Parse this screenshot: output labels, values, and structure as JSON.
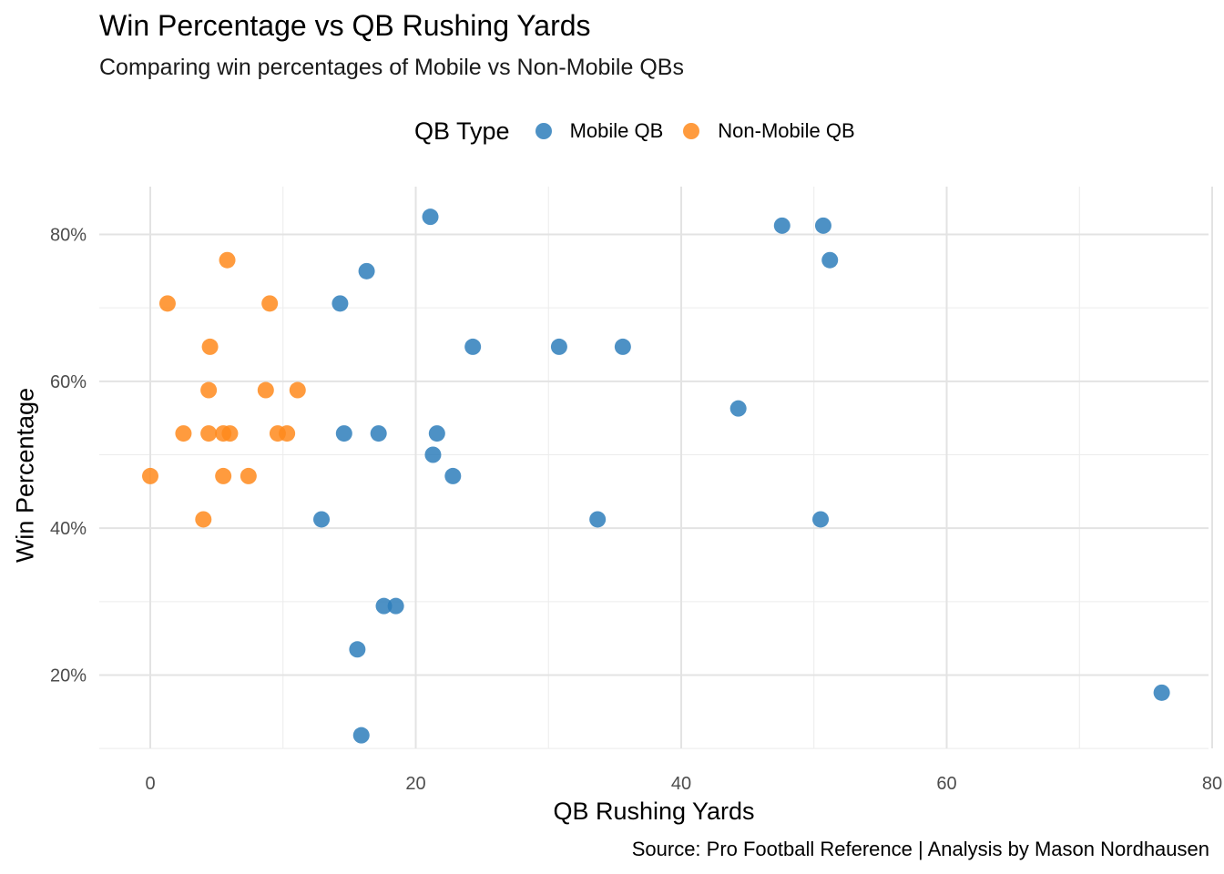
{
  "chart_data": {
    "type": "scatter",
    "title": "Win Percentage vs QB Rushing Yards",
    "subtitle": "Comparing win percentages of Mobile vs Non-Mobile QBs",
    "xlabel": "QB Rushing Yards",
    "ylabel": "Win Percentage",
    "caption": "Source: Pro Football Reference | Analysis by Mason Nordhausen",
    "xlim": [
      -4,
      80
    ],
    "ylim": [
      0.1,
      0.85
    ],
    "x_ticks": [
      0,
      20,
      40,
      60,
      80
    ],
    "x_tick_labels": [
      "0",
      "20",
      "40",
      "60",
      "80"
    ],
    "y_ticks": [
      0.2,
      0.4,
      0.6,
      0.8
    ],
    "y_tick_labels": [
      "20%",
      "40%",
      "60%",
      "80%"
    ],
    "grid": true,
    "legend_position": "top",
    "legend_title": "QB Type",
    "series": [
      {
        "name": "Mobile QB",
        "color": "#2E7EBB",
        "points": [
          {
            "x": 21.1,
            "y": 0.824
          },
          {
            "x": 47.6,
            "y": 0.812
          },
          {
            "x": 50.7,
            "y": 0.812
          },
          {
            "x": 51.2,
            "y": 0.765
          },
          {
            "x": 16.3,
            "y": 0.75
          },
          {
            "x": 14.3,
            "y": 0.706
          },
          {
            "x": 24.3,
            "y": 0.647
          },
          {
            "x": 30.8,
            "y": 0.647
          },
          {
            "x": 35.6,
            "y": 0.647
          },
          {
            "x": 44.3,
            "y": 0.563
          },
          {
            "x": 14.6,
            "y": 0.529
          },
          {
            "x": 17.2,
            "y": 0.529
          },
          {
            "x": 21.6,
            "y": 0.529
          },
          {
            "x": 21.3,
            "y": 0.5
          },
          {
            "x": 22.8,
            "y": 0.471
          },
          {
            "x": 12.9,
            "y": 0.412
          },
          {
            "x": 33.7,
            "y": 0.412
          },
          {
            "x": 50.5,
            "y": 0.412
          },
          {
            "x": 17.6,
            "y": 0.294
          },
          {
            "x": 18.5,
            "y": 0.294
          },
          {
            "x": 15.6,
            "y": 0.235
          },
          {
            "x": 15.9,
            "y": 0.118
          },
          {
            "x": 76.2,
            "y": 0.176
          }
        ]
      },
      {
        "name": "Non-Mobile QB",
        "color": "#FF8A1C",
        "points": [
          {
            "x": 5.8,
            "y": 0.765
          },
          {
            "x": 1.3,
            "y": 0.706
          },
          {
            "x": 9.0,
            "y": 0.706
          },
          {
            "x": 4.5,
            "y": 0.647
          },
          {
            "x": 4.4,
            "y": 0.588
          },
          {
            "x": 8.7,
            "y": 0.588
          },
          {
            "x": 11.1,
            "y": 0.588
          },
          {
            "x": 2.5,
            "y": 0.529
          },
          {
            "x": 4.4,
            "y": 0.529
          },
          {
            "x": 5.5,
            "y": 0.529
          },
          {
            "x": 6.0,
            "y": 0.529
          },
          {
            "x": 9.6,
            "y": 0.529
          },
          {
            "x": 10.3,
            "y": 0.529
          },
          {
            "x": 0.0,
            "y": 0.471
          },
          {
            "x": 5.5,
            "y": 0.471
          },
          {
            "x": 7.4,
            "y": 0.471
          },
          {
            "x": 4.0,
            "y": 0.412
          }
        ]
      }
    ]
  }
}
